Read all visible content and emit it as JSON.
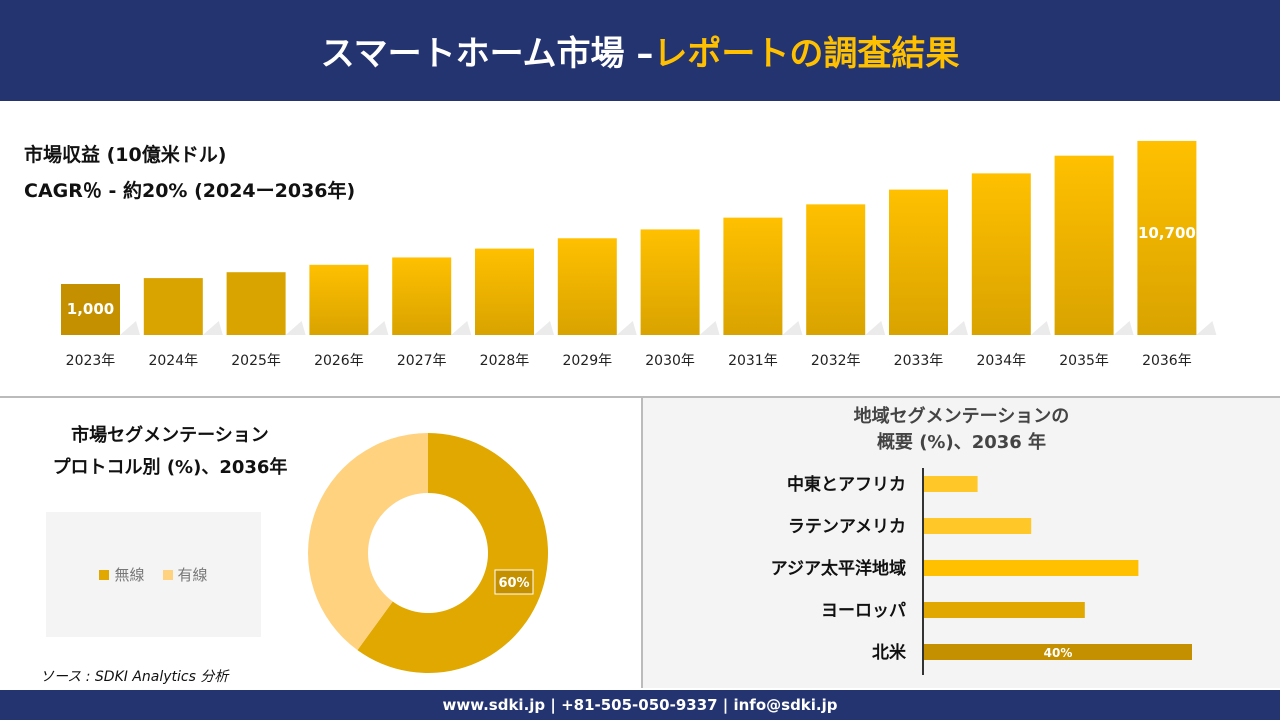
{
  "header": {
    "title_white": "スマートホーム市場 –",
    "title_yellow": "レポートの調査結果"
  },
  "colors": {
    "navy": "#243470",
    "accent": "#ffc000",
    "dark_gold": "#c49000",
    "light_gold": "#ffd280"
  },
  "chart_data": [
    {
      "type": "bar",
      "title": "市場収益 (10億米ドル)",
      "subtitle": "CAGR％ - 約20% (2024ー2036年)",
      "categories": [
        "2023年",
        "2024年",
        "2025年",
        "2026年",
        "2027年",
        "2028年",
        "2029年",
        "2030年",
        "2031年",
        "2032年",
        "2033年",
        "2034年",
        "2035年",
        "2036年"
      ],
      "values": [
        1000,
        1400,
        1800,
        2300,
        2800,
        3400,
        4100,
        4700,
        5500,
        6400,
        7400,
        8500,
        9700,
        10700
      ],
      "data_labels": {
        "0": "1,000",
        "13": "10,700"
      }
    },
    {
      "type": "pie",
      "title_line1": "市場セグメンテーション",
      "title_line2": "プロトコル別 (%)、2036年",
      "slices": [
        {
          "name": "無線",
          "value": 60,
          "color": "#e0a800",
          "label": "60%"
        },
        {
          "name": "有線",
          "value": 40,
          "color": "#ffd280"
        }
      ],
      "legend": "left",
      "hole": true
    },
    {
      "type": "bar",
      "orientation": "horizontal",
      "title_line1": "地域セグメンテーションの",
      "title_line2": "概要 (%)、2036 年",
      "categories": [
        "中東とアフリカ",
        "ラテンアメリカ",
        "アジア太平洋地域",
        "ヨーロッパ",
        "北米"
      ],
      "values": [
        8,
        16,
        32,
        24,
        40
      ],
      "colors": [
        "#ffc828",
        "#ffc828",
        "#ffc000",
        "#e0a800",
        "#c49000"
      ],
      "data_labels": {
        "4": "40%"
      }
    }
  ],
  "source": "ソース : SDKI Analytics 分析",
  "footer": "www.sdki.jp | +81-505-050-9337 | info@sdki.jp"
}
